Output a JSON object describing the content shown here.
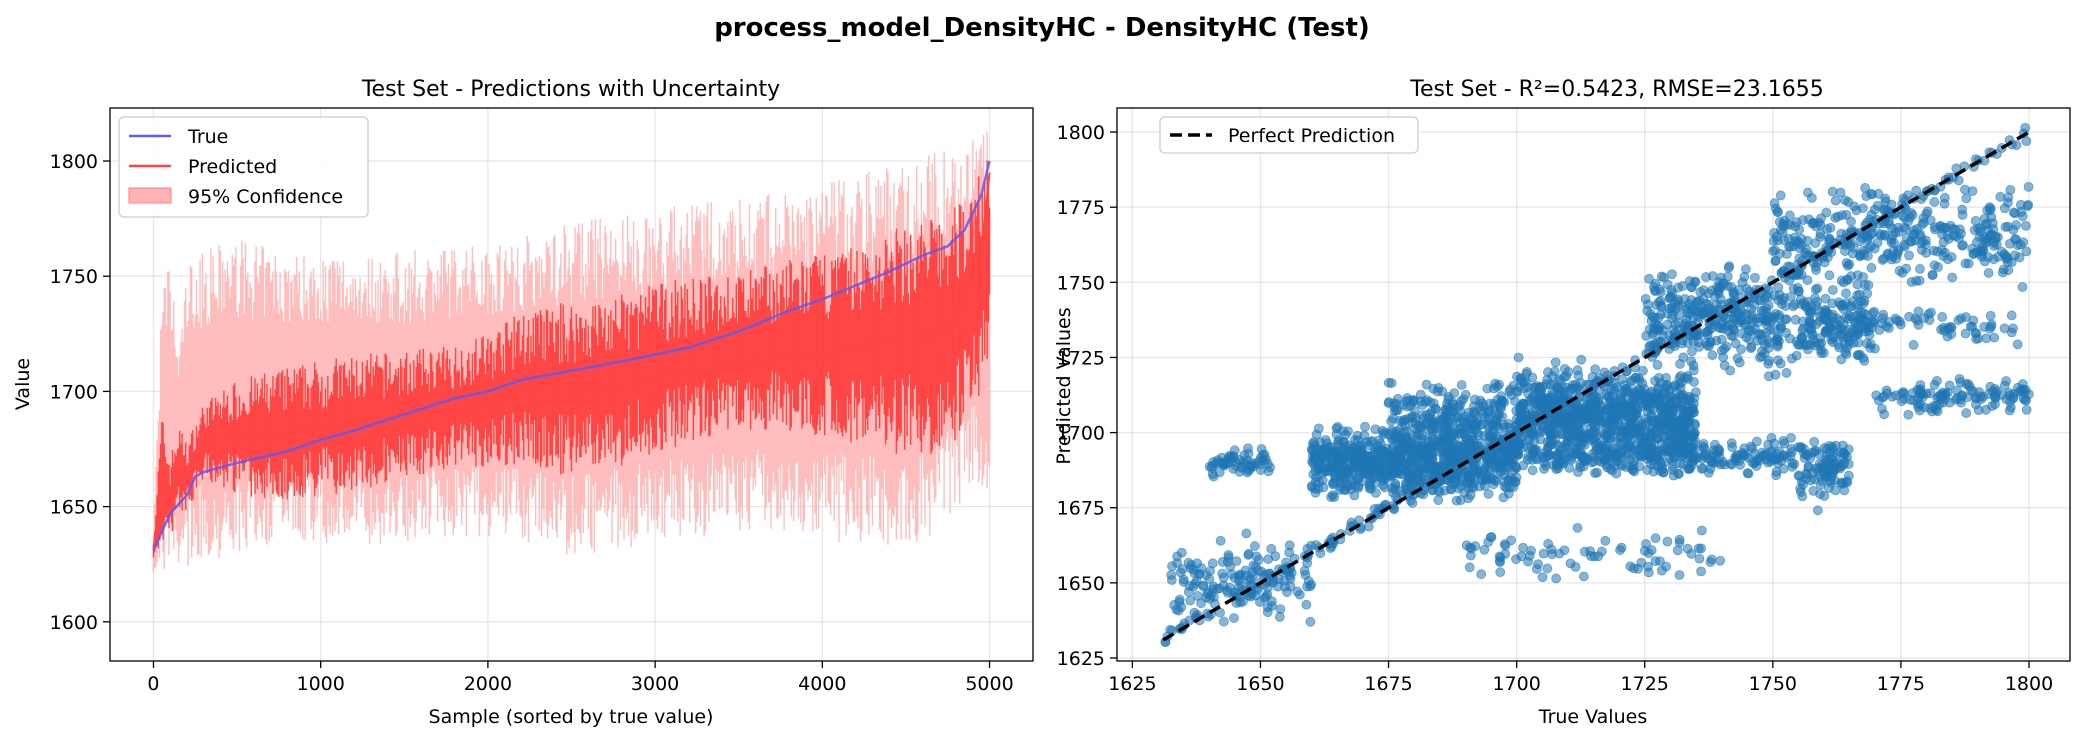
{
  "figure": {
    "suptitle": "process_model_DensityHC - DensityHC (Test)"
  },
  "chart_data": [
    {
      "type": "line",
      "title": "Test Set - Predictions with Uncertainty",
      "xlabel": "Sample (sorted by true value)",
      "ylabel": "Value",
      "xlim": [
        -260,
        5260
      ],
      "ylim": [
        1583,
        1823
      ],
      "xticks": [
        0,
        1000,
        2000,
        3000,
        4000,
        5000
      ],
      "yticks": [
        1600,
        1650,
        1700,
        1750,
        1800
      ],
      "grid": true,
      "legend_position": "upper left",
      "colors": {
        "true": "#5a5af5",
        "predicted": "#ff4444",
        "confidence": "#ffb3b3"
      },
      "legend": [
        "True",
        "Predicted",
        "95% Confidence"
      ],
      "series": [
        {
          "name": "True",
          "x": [
            0,
            100,
            200,
            250,
            300,
            500,
            800,
            1000,
            1200,
            1500,
            1800,
            2000,
            2200,
            2500,
            2800,
            3000,
            3200,
            3500,
            3800,
            4000,
            4200,
            4400,
            4600,
            4750,
            4850,
            4950,
            5000
          ],
          "y": [
            1631,
            1647,
            1655,
            1663,
            1665,
            1669,
            1674,
            1679,
            1683,
            1690,
            1697,
            1700,
            1705,
            1709,
            1713,
            1716,
            1719,
            1726,
            1735,
            1740,
            1746,
            1752,
            1759,
            1763,
            1770,
            1785,
            1800
          ]
        },
        {
          "name": "Predicted",
          "x": [
            0,
            50,
            100,
            150,
            200,
            300,
            500,
            800,
            1000,
            1200,
            1500,
            1800,
            2000,
            2200,
            2500,
            2800,
            3000,
            3200,
            3500,
            3800,
            4000,
            4200,
            4400,
            4600,
            4750,
            4850,
            4950,
            5000
          ],
          "y": [
            1632,
            1660,
            1650,
            1665,
            1660,
            1678,
            1680,
            1682,
            1684,
            1686,
            1690,
            1692,
            1694,
            1700,
            1700,
            1702,
            1706,
            1708,
            1712,
            1715,
            1716,
            1718,
            1722,
            1724,
            1725,
            1740,
            1760,
            1795
          ],
          "lower": [
            1624,
            1640,
            1638,
            1652,
            1650,
            1665,
            1660,
            1658,
            1660,
            1662,
            1668,
            1672,
            1672,
            1675,
            1670,
            1675,
            1680,
            1685,
            1690,
            1690,
            1688,
            1685,
            1683,
            1680,
            1682,
            1695,
            1705,
            1722
          ],
          "upper": [
            1636,
            1685,
            1668,
            1682,
            1675,
            1692,
            1700,
            1705,
            1708,
            1710,
            1712,
            1715,
            1720,
            1728,
            1732,
            1735,
            1740,
            1742,
            1745,
            1750,
            1752,
            1755,
            1760,
            1766,
            1768,
            1775,
            1790,
            1800
          ]
        },
        {
          "name": "95% Confidence",
          "x": [
            0,
            50,
            100,
            150,
            200,
            300,
            500,
            800,
            1000,
            1200,
            1500,
            1800,
            2000,
            2200,
            2500,
            2800,
            3000,
            3200,
            3500,
            3800,
            4000,
            4200,
            4400,
            4600,
            4750,
            4850,
            4950,
            5000
          ],
          "lower": [
            1622,
            1626,
            1626,
            1628,
            1630,
            1632,
            1635,
            1640,
            1640,
            1638,
            1640,
            1642,
            1642,
            1640,
            1635,
            1638,
            1640,
            1642,
            1645,
            1645,
            1642,
            1640,
            1640,
            1640,
            1650,
            1660,
            1665,
            1660
          ],
          "upper": [
            1640,
            1738,
            1752,
            1715,
            1750,
            1755,
            1760,
            1755,
            1755,
            1755,
            1755,
            1758,
            1760,
            1762,
            1768,
            1770,
            1772,
            1775,
            1778,
            1780,
            1782,
            1788,
            1792,
            1795,
            1798,
            1800,
            1806,
            1808
          ]
        }
      ]
    },
    {
      "type": "scatter",
      "title": "Test Set - R²=0.5423, RMSE=23.1655",
      "xlabel": "True Values",
      "ylabel": "Predicted Values",
      "xlim": [
        1622,
        1808
      ],
      "ylim": [
        1624,
        1808
      ],
      "xticks": [
        1625,
        1650,
        1675,
        1700,
        1725,
        1750,
        1775,
        1800
      ],
      "yticks": [
        1625,
        1650,
        1675,
        1700,
        1725,
        1750,
        1775,
        1800
      ],
      "grid": true,
      "legend_position": "upper left",
      "legend": [
        "Perfect Prediction"
      ],
      "colors": {
        "points": "#1f77b4",
        "perfect": "#000000"
      },
      "perfect_line": [
        [
          1631,
          1631
        ],
        [
          1800,
          1800
        ]
      ],
      "clusters": [
        {
          "x_range": [
            1632,
            1660
          ],
          "y_center": 1650,
          "y_spread": 18,
          "n": 150
        },
        {
          "x_range": [
            1640,
            1652
          ],
          "y_center": 1690,
          "y_spread": 6,
          "n": 60
        },
        {
          "x_range": [
            1660,
            1700
          ],
          "y_center": 1690,
          "y_spread": 16,
          "n": 800
        },
        {
          "x_range": [
            1675,
            1700
          ],
          "y_center": 1705,
          "y_spread": 18,
          "n": 250
        },
        {
          "x_range": [
            1700,
            1735
          ],
          "y_center": 1705,
          "y_spread": 22,
          "n": 900
        },
        {
          "x_range": [
            1705,
            1765
          ],
          "y_center": 1692,
          "y_spread": 8,
          "n": 300
        },
        {
          "x_range": [
            1725,
            1770
          ],
          "y_center": 1738,
          "y_spread": 22,
          "n": 500
        },
        {
          "x_range": [
            1750,
            1800
          ],
          "y_center": 1765,
          "y_spread": 20,
          "n": 350
        },
        {
          "x_range": [
            1755,
            1765
          ],
          "y_center": 1685,
          "y_spread": 12,
          "n": 60
        },
        {
          "x_range": [
            1770,
            1800
          ],
          "y_center": 1712,
          "y_spread": 8,
          "n": 120
        },
        {
          "x_range": [
            1760,
            1798
          ],
          "y_center": 1735,
          "y_spread": 8,
          "n": 80
        },
        {
          "x_range": [
            1690,
            1740
          ],
          "y_center": 1660,
          "y_spread": 12,
          "n": 80
        }
      ]
    }
  ]
}
